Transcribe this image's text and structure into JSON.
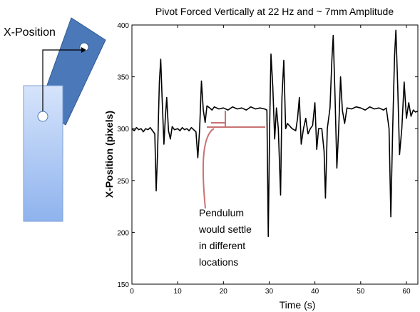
{
  "diagram": {
    "label": "X-Position"
  },
  "chart_data": {
    "type": "line",
    "title": "Pivot Forced Vertically at 22 Hz and ~ 7mm Amplitude",
    "xlabel": "Time (s)",
    "ylabel": "X-Position (pixels)",
    "annotation": [
      "Pendulum",
      "would settle",
      "in different",
      "locations"
    ],
    "color": "#000000",
    "xlim": [
      0,
      62.5
    ],
    "ylim": [
      150,
      400
    ],
    "xticks": [
      0,
      10,
      20,
      30,
      40,
      50,
      60
    ],
    "yticks": [
      150,
      200,
      250,
      300,
      350,
      400
    ],
    "x": [
      0,
      0.5,
      1,
      1.5,
      2,
      2.5,
      3,
      3.5,
      4,
      4.5,
      5,
      5.3,
      5.6,
      6,
      6.3,
      6.6,
      7,
      7.3,
      7.6,
      8,
      8.4,
      8.8,
      9.3,
      10,
      10.5,
      11,
      11.5,
      12,
      12.5,
      13,
      13.5,
      14,
      14.4,
      14.8,
      15.2,
      15.6,
      16,
      16.4,
      17,
      17.5,
      18,
      19,
      20,
      21,
      22,
      23,
      24,
      25,
      26,
      27,
      28,
      29,
      29.5,
      29.8,
      30.1,
      30.4,
      30.8,
      31.2,
      31.6,
      32,
      32.5,
      32.8,
      33.2,
      33.6,
      34,
      35,
      35.8,
      36.2,
      36.6,
      37,
      37.5,
      38,
      38.5,
      39,
      39.5,
      40,
      40.4,
      40.8,
      41.5,
      42,
      42.3,
      42.7,
      43.3,
      43.7,
      44,
      44.4,
      44.8,
      45.2,
      45.6,
      46,
      46.5,
      47,
      48,
      49,
      50,
      51,
      52,
      53,
      54,
      55,
      55.6,
      56.2,
      56.6,
      57,
      57.4,
      57.7,
      58.1,
      58.5,
      59,
      59.5,
      60,
      60.5,
      61,
      61.5,
      62,
      62.5
    ],
    "values": [
      300,
      298,
      301,
      299,
      300,
      297,
      300,
      299,
      301,
      298,
      295,
      240,
      275,
      345,
      367,
      330,
      285,
      310,
      330,
      298,
      290,
      302,
      299,
      300,
      298,
      301,
      299,
      300,
      298,
      301,
      299,
      297,
      272,
      300,
      346,
      318,
      306,
      322,
      320,
      318,
      321,
      319,
      320,
      318,
      321,
      319,
      320,
      318,
      321,
      319,
      320,
      319,
      318,
      196,
      300,
      372,
      340,
      290,
      320,
      300,
      236,
      330,
      366,
      300,
      305,
      300,
      298,
      310,
      330,
      285,
      300,
      310,
      295,
      300,
      303,
      325,
      280,
      300,
      300,
      278,
      233,
      300,
      320,
      366,
      390,
      330,
      262,
      300,
      350,
      318,
      305,
      320,
      319,
      321,
      320,
      318,
      321,
      319,
      320,
      318,
      320,
      300,
      215,
      300,
      370,
      395,
      340,
      275,
      300,
      345,
      310,
      325,
      312,
      318,
      316,
      317
    ]
  }
}
